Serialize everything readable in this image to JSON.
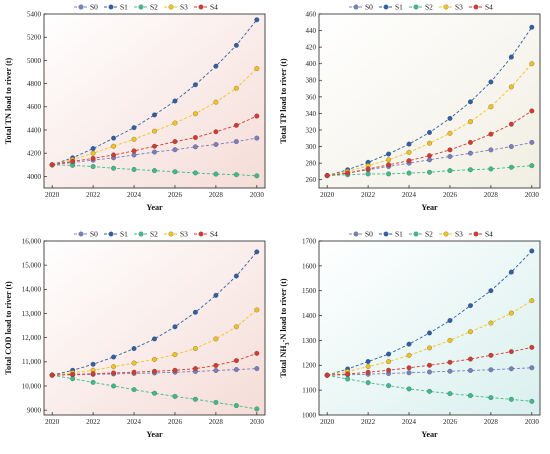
{
  "chart_data": [
    {
      "type": "line",
      "xlabel": "Year",
      "ylabel": "Total TN load to river (t)",
      "x": [
        2020,
        2021,
        2022,
        2023,
        2024,
        2025,
        2026,
        2027,
        2028,
        2029,
        2030
      ],
      "xticks": [
        "2020",
        "2022",
        "2024",
        "2026",
        "2028",
        "2030"
      ],
      "ylim": [
        3900,
        5400
      ],
      "yticks": [
        "4000",
        "4200",
        "4400",
        "4600",
        "4800",
        "5000",
        "5200",
        "5400"
      ],
      "series": [
        {
          "name": "S0",
          "color": "#7a7fc0",
          "values": [
            4100,
            4120,
            4140,
            4160,
            4185,
            4210,
            4230,
            4255,
            4275,
            4300,
            4330
          ]
        },
        {
          "name": "S1",
          "color": "#2f5fa6",
          "values": [
            4100,
            4160,
            4240,
            4330,
            4420,
            4530,
            4650,
            4790,
            4950,
            5130,
            5350
          ]
        },
        {
          "name": "S2",
          "color": "#3dbb8a",
          "values": [
            4100,
            4095,
            4085,
            4070,
            4060,
            4050,
            4040,
            4030,
            4020,
            4015,
            4005
          ]
        },
        {
          "name": "S3",
          "color": "#f2c21f",
          "values": [
            4100,
            4145,
            4200,
            4260,
            4320,
            4390,
            4460,
            4540,
            4640,
            4760,
            4930
          ]
        },
        {
          "name": "S4",
          "color": "#d63a2f",
          "values": [
            4100,
            4130,
            4155,
            4185,
            4220,
            4260,
            4300,
            4335,
            4385,
            4440,
            4520
          ]
        }
      ]
    },
    {
      "type": "line",
      "xlabel": "Year",
      "ylabel": "Total TP load to river (t)",
      "x": [
        2020,
        2021,
        2022,
        2023,
        2024,
        2025,
        2026,
        2027,
        2028,
        2029,
        2030
      ],
      "xticks": [
        "2020",
        "2022",
        "2024",
        "2026",
        "2028",
        "2030"
      ],
      "ylim": [
        250,
        460
      ],
      "yticks": [
        "260",
        "280",
        "300",
        "320",
        "340",
        "360",
        "380",
        "400",
        "420",
        "440",
        "460"
      ],
      "series": [
        {
          "name": "S0",
          "color": "#7a7fc0",
          "values": [
            265,
            268,
            272,
            276,
            280,
            284,
            288,
            292,
            296,
            300,
            305
          ]
        },
        {
          "name": "S1",
          "color": "#2f5fa6",
          "values": [
            265,
            272,
            281,
            291,
            303,
            317,
            334,
            354,
            378,
            408,
            444
          ]
        },
        {
          "name": "S2",
          "color": "#3dbb8a",
          "values": [
            265,
            266,
            267,
            267,
            268,
            269,
            271,
            272,
            273,
            275,
            277
          ]
        },
        {
          "name": "S3",
          "color": "#f2c21f",
          "values": [
            265,
            270,
            277,
            284,
            293,
            304,
            316,
            330,
            348,
            372,
            400
          ]
        },
        {
          "name": "S4",
          "color": "#d63a2f",
          "values": [
            265,
            268,
            273,
            278,
            283,
            289,
            296,
            305,
            315,
            327,
            343
          ]
        }
      ]
    },
    {
      "type": "line",
      "xlabel": "Year",
      "ylabel": "Total COD load to river (t)",
      "x": [
        2020,
        2021,
        2022,
        2023,
        2024,
        2025,
        2026,
        2027,
        2028,
        2029,
        2030
      ],
      "xticks": [
        "2020",
        "2022",
        "2024",
        "2026",
        "2028",
        "2030"
      ],
      "ylim": [
        8800,
        16000
      ],
      "yticks": [
        "9000",
        "10,000",
        "11,000",
        "12,000",
        "13,000",
        "14,000",
        "15,000",
        "16,000"
      ],
      "series": [
        {
          "name": "S0",
          "color": "#7a7fc0",
          "values": [
            10450,
            10460,
            10480,
            10500,
            10520,
            10540,
            10570,
            10600,
            10640,
            10680,
            10720
          ]
        },
        {
          "name": "S1",
          "color": "#2f5fa6",
          "values": [
            10450,
            10650,
            10900,
            11200,
            11550,
            11950,
            12450,
            13050,
            13750,
            14550,
            15550
          ]
        },
        {
          "name": "S2",
          "color": "#3dbb8a",
          "values": [
            10450,
            10300,
            10150,
            10000,
            9850,
            9700,
            9570,
            9450,
            9320,
            9190,
            9050
          ]
        },
        {
          "name": "S3",
          "color": "#f2c21f",
          "values": [
            10450,
            10550,
            10650,
            10800,
            10950,
            11100,
            11300,
            11550,
            11950,
            12450,
            13150
          ]
        },
        {
          "name": "S4",
          "color": "#d63a2f",
          "values": [
            10450,
            10480,
            10510,
            10540,
            10570,
            10610,
            10650,
            10720,
            10850,
            11050,
            11350
          ]
        }
      ]
    },
    {
      "type": "line",
      "xlabel": "Year",
      "ylabel": "Total NH3-N load to river (t)",
      "ylabel_main": "Total NH",
      "ylabel_sub": "3",
      "ylabel_rest": "-N load to river (t)",
      "x": [
        2020,
        2021,
        2022,
        2023,
        2024,
        2025,
        2026,
        2027,
        2028,
        2029,
        2030
      ],
      "xticks": [
        "2020",
        "2022",
        "2024",
        "2026",
        "2028",
        "2030"
      ],
      "ylim": [
        1000,
        1700
      ],
      "yticks": [
        "1000",
        "1100",
        "1200",
        "1300",
        "1400",
        "1500",
        "1600",
        "1700"
      ],
      "series": [
        {
          "name": "S0",
          "color": "#7a7fc0",
          "values": [
            1160,
            1162,
            1164,
            1167,
            1170,
            1173,
            1176,
            1179,
            1182,
            1186,
            1190
          ]
        },
        {
          "name": "S1",
          "color": "#2f5fa6",
          "values": [
            1160,
            1185,
            1215,
            1245,
            1285,
            1330,
            1380,
            1440,
            1500,
            1575,
            1660
          ]
        },
        {
          "name": "S2",
          "color": "#3dbb8a",
          "values": [
            1160,
            1145,
            1130,
            1118,
            1105,
            1095,
            1086,
            1078,
            1070,
            1063,
            1055
          ]
        },
        {
          "name": "S3",
          "color": "#f2c21f",
          "values": [
            1160,
            1175,
            1195,
            1215,
            1240,
            1270,
            1300,
            1335,
            1370,
            1410,
            1460
          ]
        },
        {
          "name": "S4",
          "color": "#d63a2f",
          "values": [
            1160,
            1165,
            1172,
            1180,
            1190,
            1200,
            1212,
            1225,
            1240,
            1255,
            1272
          ]
        }
      ]
    }
  ],
  "legend_prefix": "– ● –",
  "backgrounds": [
    "#f5dcd7",
    "#f1eee2",
    "#f5dcd7",
    "#d9f0ee"
  ]
}
